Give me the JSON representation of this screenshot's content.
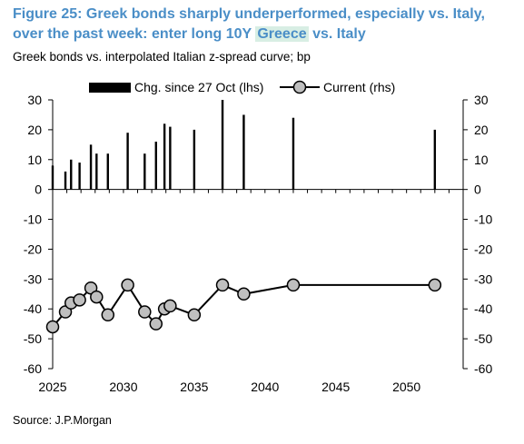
{
  "header": {
    "title_line1": "Figure 25: Greek bonds sharply underperformed, especially vs. Italy,",
    "title_line2_pre": "over the past week: enter long 10Y ",
    "title_line2_highlight": "Greece",
    "title_line2_post": " vs. Italy",
    "subtitle": "Greek bonds vs. interpolated Italian z-spread curve; bp"
  },
  "footer": {
    "source": "Source: J.P.Morgan"
  },
  "colors": {
    "bars": "#000000",
    "line": "#000000",
    "marker_fill": "#bfbfbf",
    "title": "#4a8ec7",
    "highlight": "#d8eee4"
  },
  "chart_data": {
    "type": "bar+line",
    "legend": {
      "placement": "top",
      "entries": [
        "Chg. since 27 Oct (lhs)",
        "Current (rhs)"
      ]
    },
    "x_ticks": [
      "2025",
      "2030",
      "2035",
      "2040",
      "2045",
      "2050"
    ],
    "xlim": [
      2025,
      2054
    ],
    "y_left": {
      "ylim": [
        -60,
        30
      ],
      "ticks": [
        "30",
        "20",
        "10",
        "0",
        "-10",
        "-20",
        "-30",
        "-40",
        "-50",
        "-60"
      ]
    },
    "y_right": {
      "ylim": [
        -60,
        30
      ],
      "ticks": [
        "30",
        "20",
        "10",
        "0",
        "-10",
        "-20",
        "-30",
        "-40",
        "-50",
        "-60"
      ]
    },
    "series": [
      {
        "name": "Chg. since 27 Oct (lhs)",
        "kind": "bar",
        "axis": "left",
        "x": [
          2025.0,
          2025.9,
          2026.3,
          2026.9,
          2027.7,
          2028.1,
          2028.9,
          2030.3,
          2031.5,
          2032.3,
          2032.9,
          2033.3,
          2035.0,
          2037.0,
          2038.5,
          2042.0,
          2052.0
        ],
        "values": [
          8,
          6,
          10,
          9,
          15,
          12,
          12,
          19,
          12,
          16,
          22,
          21,
          20,
          30,
          25,
          24,
          20
        ]
      },
      {
        "name": "Current (rhs)",
        "kind": "line",
        "axis": "right",
        "x": [
          2025.0,
          2025.9,
          2026.3,
          2026.9,
          2027.7,
          2028.1,
          2028.9,
          2030.3,
          2031.5,
          2032.3,
          2032.9,
          2033.3,
          2035.0,
          2037.0,
          2038.5,
          2042.0,
          2052.0
        ],
        "values": [
          -46,
          -41,
          -38,
          -37,
          -33,
          -36,
          -42,
          -32,
          -41,
          -45,
          -40,
          -39,
          -42,
          -32,
          -35,
          -32,
          -32
        ]
      }
    ]
  }
}
